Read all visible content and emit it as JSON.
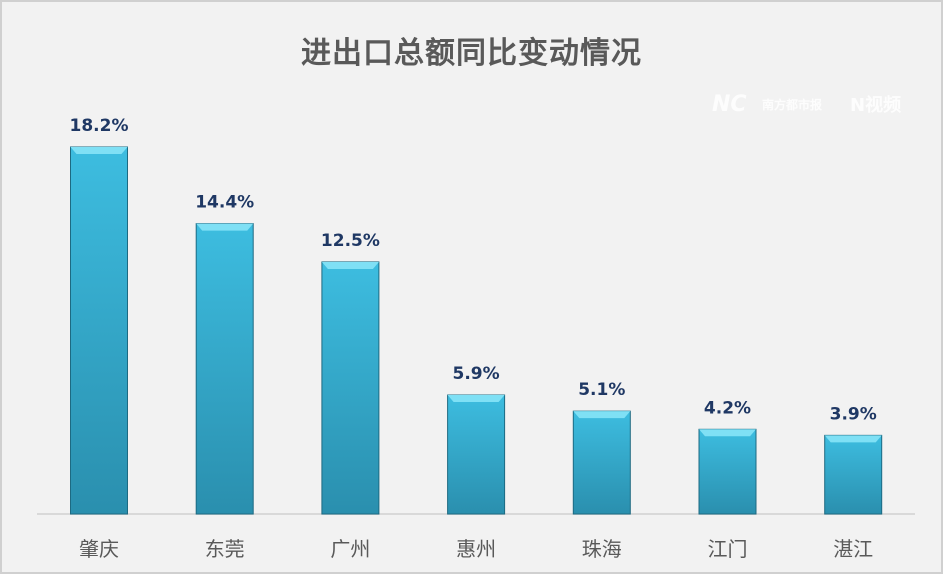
{
  "chart_data": {
    "type": "bar",
    "title": "进出口总额同比变动情况",
    "categories": [
      "肇庆",
      "东莞",
      "广州",
      "惠州",
      "珠海",
      "江门",
      "湛江"
    ],
    "values": [
      18.2,
      14.4,
      12.5,
      5.9,
      5.1,
      4.2,
      3.9
    ],
    "value_labels": [
      "18.2%",
      "14.4%",
      "12.5%",
      "5.9%",
      "5.1%",
      "4.2%",
      "3.9%"
    ],
    "unit": "%",
    "ylim": [
      0,
      18.2
    ],
    "grid": false,
    "legend": "none",
    "colors": {
      "bar": "#38b6d8",
      "bar_top": "#7fe0f5",
      "label": "#1f3864",
      "category": "#595959"
    }
  },
  "watermark": {
    "brand1": "南方都市报",
    "brand2": "N视频"
  }
}
